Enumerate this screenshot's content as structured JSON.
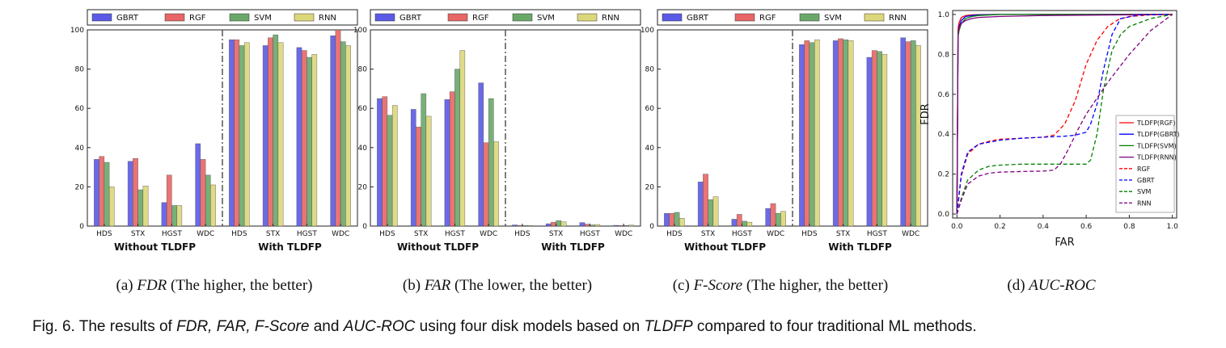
{
  "figure": {
    "caption": {
      "prefix": "Fig. 6. The results of ",
      "metrics": "FDR, FAR, F-Score",
      "and": " and ",
      "auc": "AUC-ROC",
      "middle": " using four disk models based on ",
      "method": "TLDFP",
      "suffix": " compared to four traditional ML methods."
    }
  },
  "captions": [
    {
      "letter": "(a)",
      "metric": "FDR",
      "note": "(The higher, the better)"
    },
    {
      "letter": "(b)",
      "metric": "FAR",
      "note": "(The lower, the better)"
    },
    {
      "letter": "(c)",
      "metric": "F-Score",
      "note": "(The higher, the better)"
    },
    {
      "letter": "(d)",
      "metric": "AUC-ROC",
      "note": ""
    }
  ],
  "colors": {
    "GBRT": "#5a5ae6",
    "RGF": "#e86666",
    "SVM": "#6aa86a",
    "RNN": "#dcd77a"
  },
  "chart_data": [
    {
      "type": "bar",
      "title": "",
      "categories": [
        "HDS",
        "STX",
        "HGST",
        "WDC",
        "HDS",
        "STX",
        "HGST",
        "WDC"
      ],
      "groups": [
        "Without TLDFP",
        "With TLDFP"
      ],
      "ylim": [
        0,
        100
      ],
      "yticks": [
        0,
        20,
        40,
        60,
        80,
        100
      ],
      "legend": "top",
      "series": [
        {
          "name": "GBRT",
          "values": [
            34,
            33,
            12,
            42,
            95,
            92,
            91,
            97
          ]
        },
        {
          "name": "RGF",
          "values": [
            35.5,
            34.5,
            26,
            34,
            95,
            96,
            89.5,
            100
          ]
        },
        {
          "name": "SVM",
          "values": [
            32.5,
            18.5,
            10.5,
            26,
            92,
            97.5,
            86,
            94
          ]
        },
        {
          "name": "RNN",
          "values": [
            20,
            20.5,
            10.5,
            21,
            93.5,
            93.5,
            87.5,
            92
          ]
        }
      ]
    },
    {
      "type": "bar",
      "title": "",
      "categories": [
        "HDS",
        "STX",
        "HGST",
        "WDC",
        "HDS",
        "STX",
        "HGST",
        "WDC"
      ],
      "groups": [
        "Without TLDFP",
        "With TLDFP"
      ],
      "ylim": [
        0,
        100
      ],
      "yticks": [
        0,
        20,
        40,
        60,
        80,
        100
      ],
      "legend": "top",
      "series": [
        {
          "name": "GBRT",
          "values": [
            65,
            59.5,
            64.5,
            73,
            0.6,
            1.2,
            1.8,
            0.4
          ]
        },
        {
          "name": "RGF",
          "values": [
            66,
            50.5,
            68.5,
            42.5,
            0.4,
            2,
            1,
            0.3
          ]
        },
        {
          "name": "SVM",
          "values": [
            56.5,
            67.5,
            80,
            65,
            0.3,
            2.8,
            0.6,
            0.3
          ]
        },
        {
          "name": "RNN",
          "values": [
            61.5,
            56,
            89.5,
            43,
            0.3,
            2.2,
            0.8,
            0.5
          ]
        }
      ]
    },
    {
      "type": "bar",
      "title": "",
      "categories": [
        "HDS",
        "STX",
        "HGST",
        "WDC",
        "HDS",
        "STX",
        "HGST",
        "WDC"
      ],
      "groups": [
        "Without TLDFP",
        "With TLDFP"
      ],
      "ylim": [
        0,
        100
      ],
      "yticks": [
        0,
        20,
        40,
        60,
        80,
        100
      ],
      "legend": "top",
      "series": [
        {
          "name": "GBRT",
          "values": [
            6.5,
            22.5,
            3.5,
            9,
            92.5,
            94.5,
            86,
            96
          ]
        },
        {
          "name": "RGF",
          "values": [
            6.5,
            26.5,
            6,
            11.5,
            94.5,
            95.5,
            89.5,
            94
          ]
        },
        {
          "name": "SVM",
          "values": [
            7,
            13.5,
            2.5,
            6.5,
            93.5,
            95,
            89,
            94.5
          ]
        },
        {
          "name": "RNN",
          "values": [
            4,
            15,
            2,
            7.5,
            95,
            94.5,
            87.5,
            92
          ]
        }
      ]
    },
    {
      "type": "line",
      "title": "",
      "xlabel": "FAR",
      "ylabel": "FDR",
      "xlim": [
        0,
        1
      ],
      "ylim": [
        0,
        1
      ],
      "xticks": [
        0.0,
        0.2,
        0.4,
        0.6,
        0.8,
        1.0
      ],
      "yticks": [
        0.0,
        0.2,
        0.4,
        0.6,
        0.8,
        1.0
      ],
      "legend": "right",
      "series": [
        {
          "name": "TLDFP(RGF)",
          "color": "#ff0000",
          "dash": false,
          "x": [
            0,
            0.005,
            0.01,
            0.02,
            0.04,
            0.07,
            0.1,
            0.2,
            1.0
          ],
          "y": [
            0,
            0.93,
            0.96,
            0.985,
            0.995,
            0.998,
            0.999,
            1.0,
            1.0
          ]
        },
        {
          "name": "TLDFP(GBRT)",
          "color": "#0000ff",
          "dash": false,
          "x": [
            0,
            0.005,
            0.01,
            0.02,
            0.04,
            0.07,
            0.1,
            0.2,
            1.0
          ],
          "y": [
            0,
            0.9,
            0.94,
            0.97,
            0.99,
            0.995,
            0.998,
            1.0,
            1.0
          ]
        },
        {
          "name": "TLDFP(SVM)",
          "color": "#008000",
          "dash": false,
          "x": [
            0,
            0.005,
            0.01,
            0.02,
            0.04,
            0.07,
            0.1,
            0.2,
            1.0
          ],
          "y": [
            0,
            0.89,
            0.92,
            0.955,
            0.98,
            0.99,
            0.995,
            1.0,
            1.0
          ]
        },
        {
          "name": "TLDFP(RNN)",
          "color": "#800080",
          "dash": false,
          "x": [
            0,
            0.005,
            0.01,
            0.02,
            0.04,
            0.07,
            0.1,
            0.2,
            0.4,
            1.0
          ],
          "y": [
            0,
            0.91,
            0.935,
            0.955,
            0.97,
            0.98,
            0.985,
            0.99,
            0.995,
            1.0
          ]
        },
        {
          "name": "RGF",
          "color": "#ff0000",
          "dash": true,
          "x": [
            0,
            0.02,
            0.05,
            0.1,
            0.15,
            0.2,
            0.3,
            0.4,
            0.45,
            0.5,
            0.55,
            0.6,
            0.65,
            0.7,
            0.75,
            0.8,
            0.9,
            1.0
          ],
          "y": [
            0,
            0.19,
            0.3,
            0.35,
            0.365,
            0.375,
            0.38,
            0.385,
            0.395,
            0.45,
            0.57,
            0.75,
            0.87,
            0.94,
            0.975,
            0.99,
            0.998,
            1.0
          ]
        },
        {
          "name": "GBRT",
          "color": "#0000ff",
          "dash": true,
          "x": [
            0,
            0.02,
            0.05,
            0.1,
            0.15,
            0.2,
            0.3,
            0.4,
            0.5,
            0.55,
            0.6,
            0.62,
            0.65,
            0.68,
            0.72,
            0.76,
            0.85,
            1.0
          ],
          "y": [
            0,
            0.2,
            0.31,
            0.35,
            0.36,
            0.37,
            0.38,
            0.385,
            0.39,
            0.395,
            0.41,
            0.45,
            0.55,
            0.72,
            0.9,
            0.98,
            0.998,
            1.0
          ]
        },
        {
          "name": "SVM",
          "color": "#008000",
          "dash": true,
          "x": [
            0,
            0.02,
            0.05,
            0.1,
            0.15,
            0.2,
            0.3,
            0.5,
            0.6,
            0.62,
            0.65,
            0.68,
            0.72,
            0.76,
            0.8,
            0.9,
            1.0
          ],
          "y": [
            0,
            0.08,
            0.17,
            0.22,
            0.24,
            0.245,
            0.25,
            0.25,
            0.25,
            0.27,
            0.4,
            0.62,
            0.82,
            0.9,
            0.94,
            0.98,
            1.0
          ]
        },
        {
          "name": "RNN",
          "color": "#800080",
          "dash": true,
          "x": [
            0,
            0.02,
            0.05,
            0.1,
            0.15,
            0.2,
            0.3,
            0.4,
            0.45,
            0.48,
            0.52,
            0.56,
            0.6,
            0.7,
            0.8,
            0.9,
            1.0
          ],
          "y": [
            0,
            0.07,
            0.15,
            0.19,
            0.205,
            0.21,
            0.213,
            0.215,
            0.22,
            0.25,
            0.33,
            0.42,
            0.5,
            0.66,
            0.8,
            0.92,
            1.0
          ]
        }
      ]
    }
  ]
}
